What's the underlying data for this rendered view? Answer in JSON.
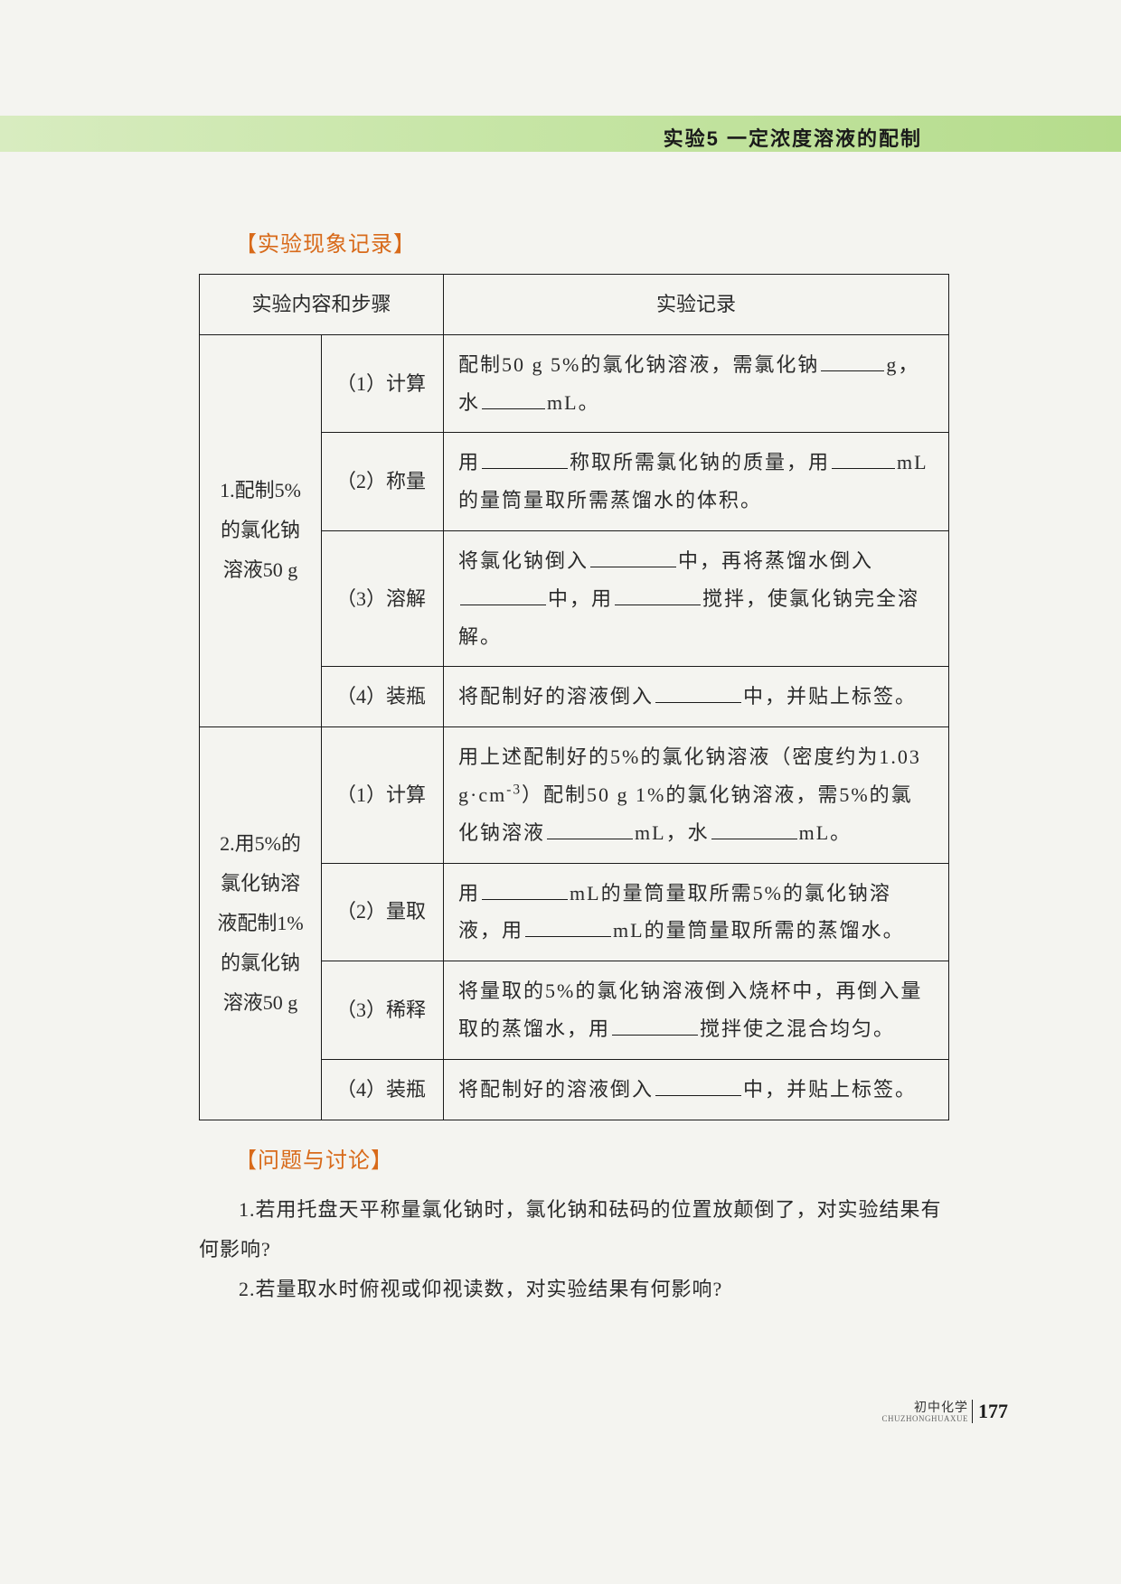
{
  "header": {
    "title": "实验5 一定浓度溶液的配制"
  },
  "sections": {
    "record_heading": "【实验现象记录】",
    "discuss_heading": "【问题与讨论】"
  },
  "table": {
    "header_left": "实验内容和步骤",
    "header_right": "实验记录",
    "group1": {
      "label": "1.配制5%的氯化钠溶液50 g",
      "rows": [
        {
          "step": "（1）计算",
          "desc_pre": "配制50 g 5%的氯化钠溶液，需氯化钠",
          "unit1": "g，水",
          "unit2": "mL。"
        },
        {
          "step": "（2）称量",
          "desc_pre": "用",
          "mid1": "称取所需氯化钠的质量，用",
          "unit1": "mL的量筒量取所需蒸馏水的体积。"
        },
        {
          "step": "（3）溶解",
          "desc_pre": "将氯化钠倒入",
          "mid1": "中，再将蒸馏水倒入",
          "mid2": "中，用",
          "tail": "搅拌，使氯化钠完全溶解。"
        },
        {
          "step": "（4）装瓶",
          "desc_pre": "将配制好的溶液倒入",
          "tail": "中，并贴上标签。"
        }
      ]
    },
    "group2": {
      "label": "2.用5%的氯化钠溶液配制1%的氯化钠溶液50 g",
      "rows": [
        {
          "step": "（1）计算",
          "desc_pre": "用上述配制好的5%的氯化钠溶液（密度约为1.03 g·cm⁻³）配制50 g 1%的氯化钠溶液，需5%的氯化钠溶液",
          "unit1": "mL，水",
          "unit2": "mL。"
        },
        {
          "step": "（2）量取",
          "desc_pre": "用",
          "mid1": "mL的量筒量取所需5%的氯化钠溶液，用",
          "mid2": "mL的量筒量取所需的蒸馏水。"
        },
        {
          "step": "（3）稀释",
          "desc_pre": "将量取的5%的氯化钠溶液倒入烧杯中，再倒入量取的蒸馏水，用",
          "tail": "搅拌使之混合均匀。"
        },
        {
          "step": "（4）装瓶",
          "desc_pre": "将配制好的溶液倒入",
          "tail": "中，并贴上标签。"
        }
      ]
    }
  },
  "discussion": {
    "q1": "1.若用托盘天平称量氯化钠时，氯化钠和砝码的位置放颠倒了，对实验结果有何影响?",
    "q2": "2.若量取水时俯视或仰视读数，对实验结果有何影响?"
  },
  "footer": {
    "label": "初中化学",
    "pinyin": "CHUZHONGHUAXUE",
    "page": "177"
  },
  "colors": {
    "heading": "#d86a1a",
    "header_bar_start": "#d8ecc0",
    "header_bar_end": "#b5dc8c",
    "page_bg": "#f4f4f0",
    "text": "#2a2a2a",
    "border": "#1a1a1a"
  }
}
